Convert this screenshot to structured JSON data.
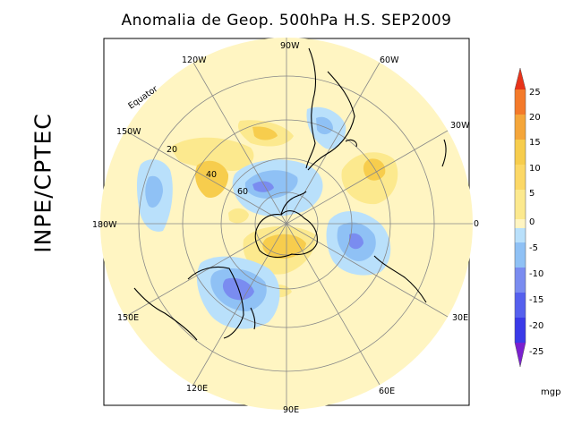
{
  "title": "Anomalia de Geop. 500hPa H.S. SEP2009",
  "side_label": "INPE/CPTEC",
  "map": {
    "longitude_labels": [
      "90W",
      "60W",
      "30W",
      "0",
      "30E",
      "60E",
      "90E",
      "120E",
      "150E",
      "180W",
      "150W",
      "120W"
    ],
    "latitude_labels": [
      "20",
      "40",
      "60"
    ],
    "equator_label": "Equator"
  },
  "colorbar": {
    "ticks": [
      "25",
      "20",
      "15",
      "10",
      "5",
      "0",
      "-5",
      "-10",
      "-15",
      "-20",
      "-25"
    ],
    "unit": "mgp",
    "colors": {
      "c25": "#e8331a",
      "c20": "#f47a2a",
      "c15": "#f5a63a",
      "c10": "#f7cd4d",
      "c5": "#fce98e",
      "c0": "#fff5c2",
      "n0": "#b9e0fb",
      "n5": "#8fc1f5",
      "n10": "#7a8cf0",
      "n15": "#5560ee",
      "n20": "#3a3ae8",
      "n25": "#7a20cf"
    }
  }
}
